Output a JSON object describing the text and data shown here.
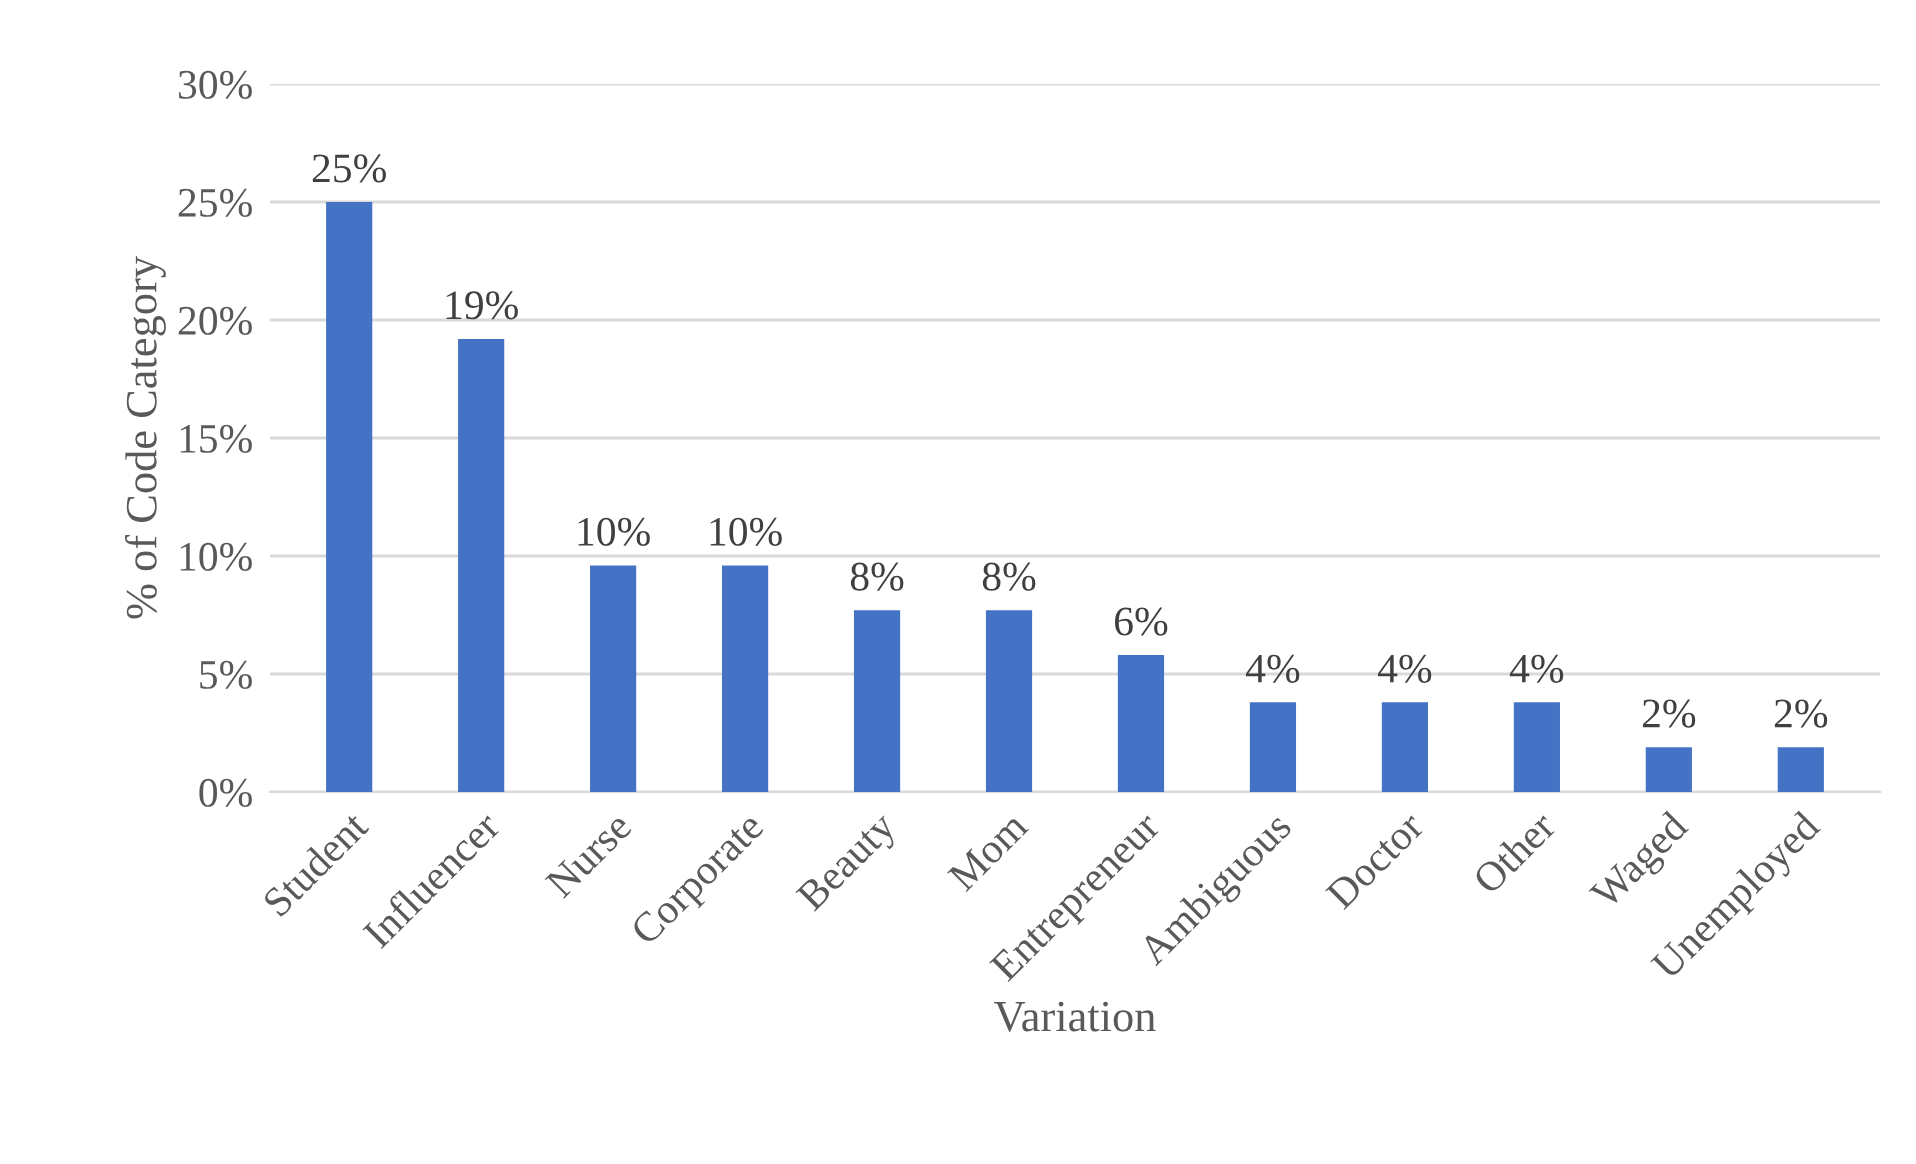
{
  "chart_data": {
    "type": "bar",
    "xlabel": "Variation",
    "ylabel": "% of Code Category",
    "categories": [
      "Student",
      "Influencer",
      "Nurse",
      "Corporate",
      "Beauty",
      "Mom",
      "Entrepreneur",
      "Ambiguous",
      "Doctor",
      "Other",
      "Waged",
      "Unemployed"
    ],
    "values": [
      25,
      19.2,
      9.6,
      9.6,
      7.7,
      7.7,
      5.8,
      3.8,
      3.8,
      3.8,
      1.9,
      1.9
    ],
    "value_labels": [
      "25%",
      "19%",
      "10%",
      "10%",
      "8%",
      "8%",
      "6%",
      "4%",
      "4%",
      "4%",
      "2%",
      "2%"
    ],
    "color": "#4472c4",
    "ylim": [
      0,
      30
    ],
    "yticks": [
      {
        "value": 0,
        "label": "0%"
      },
      {
        "value": 5,
        "label": "5%"
      },
      {
        "value": 10,
        "label": "10%"
      },
      {
        "value": 15,
        "label": "15%"
      },
      {
        "value": 20,
        "label": "20%"
      },
      {
        "value": 25,
        "label": "25%"
      },
      {
        "value": 30,
        "label": "30%"
      }
    ],
    "grid": "y",
    "legend": false
  }
}
